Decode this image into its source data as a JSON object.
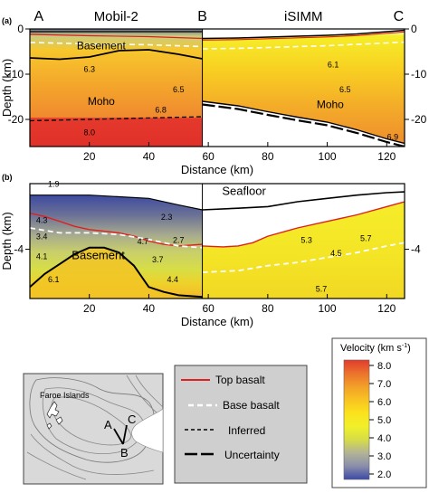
{
  "colors": {
    "top_basalt": "#e02020",
    "base_basalt": "#ffffff",
    "inferred": "#000000",
    "uncertainty": "#000000",
    "legend_bg": "#cfcfcf"
  },
  "chart_data": [
    {
      "type": "heatmap",
      "panel_label": "(a)",
      "profiles": [
        {
          "name": "Mobil-2",
          "x_range": [
            0,
            58
          ]
        },
        {
          "name": "iSIMM",
          "x_range": [
            58,
            126
          ]
        }
      ],
      "points": [
        {
          "label": "A",
          "x": 3
        },
        {
          "label": "B",
          "x": 58
        },
        {
          "label": "C",
          "x": 124
        }
      ],
      "xlabel": "Distance (km)",
      "ylabel": "Depth (km)",
      "xlim": [
        0,
        126
      ],
      "ylim": [
        -26,
        0
      ],
      "xticks": [
        20,
        40,
        60,
        80,
        100,
        120
      ],
      "yticks": [
        0,
        -10,
        -20
      ],
      "ytick_labels_left": [
        "0",
        "-10",
        "-20"
      ],
      "ytick_labels_right": [
        "0",
        "-10",
        "-20"
      ],
      "interfaces": {
        "basement": {
          "label": "Basement",
          "x": [
            0,
            10,
            20,
            30,
            40,
            50,
            58
          ],
          "y": [
            -6.4,
            -6.7,
            -6.2,
            -4.8,
            -4.6,
            -5.6,
            -6.6
          ]
        },
        "moho_mobil": {
          "label": "Moho",
          "x": [
            0,
            58
          ],
          "y": [
            -20.3,
            -19.4
          ]
        },
        "moho_isimm": {
          "label": "Moho",
          "x": [
            58,
            70,
            80,
            90,
            100,
            110,
            120,
            126
          ],
          "y": [
            -16,
            -17,
            -18.3,
            -19.5,
            -20.6,
            -22.3,
            -24.3,
            -25.3
          ]
        },
        "top_seafloor_isimm": {
          "x": [
            58,
            70,
            80,
            90,
            100,
            110,
            120,
            126
          ],
          "y": [
            -2.1,
            -2.0,
            -1.8,
            -1.6,
            -1.4,
            -1.1,
            -0.6,
            -0.3
          ]
        },
        "base_basalt_isimm": {
          "x": [
            58,
            70,
            80,
            90,
            100,
            110,
            120,
            126
          ],
          "y": [
            -4.4,
            -4.3,
            -4.1,
            -3.9,
            -3.7,
            -3.4,
            -3.1,
            -2.9
          ]
        }
      },
      "velocity_labels": [
        {
          "text": "6.3",
          "x": 20,
          "y": -9.5
        },
        {
          "text": "6.5",
          "x": 50,
          "y": -14
        },
        {
          "text": "6.8",
          "x": 44,
          "y": -18.5
        },
        {
          "text": "8.0",
          "x": 20,
          "y": -23.5
        },
        {
          "text": "6.1",
          "x": 102,
          "y": -8.5
        },
        {
          "text": "6.5",
          "x": 106,
          "y": -14
        },
        {
          "text": "6.9",
          "x": 122,
          "y": -24.5
        }
      ]
    },
    {
      "type": "heatmap",
      "panel_label": "(b)",
      "xlabel": "Distance (km)",
      "ylabel": "Depth (km)",
      "xlim": [
        0,
        126
      ],
      "ylim": [
        -7,
        0
      ],
      "xticks": [
        20,
        40,
        60,
        80,
        100,
        120
      ],
      "yticks": [
        -4
      ],
      "ytick_labels_left": [
        "-4"
      ],
      "ytick_labels_right": [
        "-4"
      ],
      "seafloor_label": "Seafloor",
      "interfaces": {
        "seafloor_mobil": {
          "x": [
            0,
            20,
            30,
            40,
            50,
            58
          ],
          "y": [
            -0.7,
            -0.7,
            -0.8,
            -0.9,
            -1.3,
            -1.6
          ]
        },
        "seafloor_isimm": {
          "x": [
            58,
            70,
            80,
            90,
            100,
            110,
            120,
            126
          ],
          "y": [
            -1.6,
            -1.5,
            -1.4,
            -1.1,
            -0.9,
            -0.7,
            -0.55,
            -0.5
          ]
        },
        "top_basalt_mobil": {
          "x": [
            0,
            5,
            10,
            15,
            20,
            25,
            30,
            35,
            40,
            45,
            50,
            58
          ],
          "y": [
            -1.8,
            -2.0,
            -2.3,
            -2.6,
            -2.8,
            -2.9,
            -3.0,
            -3.2,
            -3.5,
            -3.7,
            -3.8,
            -3.7
          ]
        },
        "top_basalt_isimm": {
          "x": [
            58,
            65,
            70,
            75,
            80,
            90,
            100,
            110,
            120,
            126
          ],
          "y": [
            -3.8,
            -3.85,
            -3.8,
            -3.6,
            -3.2,
            -2.7,
            -2.3,
            -1.9,
            -1.4,
            -1.1
          ]
        },
        "base_basalt_mobil": {
          "x": [
            0,
            10,
            20,
            30,
            40,
            50,
            58
          ],
          "y": [
            -2.7,
            -3.0,
            -3.0,
            -3.1,
            -3.4,
            -3.8,
            -3.9
          ]
        },
        "base_basalt_isimm": {
          "x": [
            58,
            70,
            80,
            90,
            100,
            110,
            120,
            126
          ],
          "y": [
            -5.4,
            -5.3,
            -5.0,
            -4.8,
            -4.5,
            -4.2,
            -3.8,
            -3.6
          ]
        },
        "basement": {
          "label": "Basement",
          "x": [
            0,
            5,
            10,
            15,
            20,
            25,
            30,
            35,
            40,
            45,
            50,
            58
          ],
          "y": [
            -6.3,
            -5.5,
            -4.9,
            -4.3,
            -3.9,
            -3.9,
            -4.2,
            -5.0,
            -6.3,
            -6.6,
            -6.8,
            -6.9
          ]
        }
      },
      "velocity_labels": [
        {
          "text": "1.9",
          "x": 8,
          "y": -0.2
        },
        {
          "text": "4.3",
          "x": 4,
          "y": -2.4
        },
        {
          "text": "3.4",
          "x": 4,
          "y": -3.4
        },
        {
          "text": "4.1",
          "x": 4,
          "y": -4.6
        },
        {
          "text": "6.1",
          "x": 8,
          "y": -6.0
        },
        {
          "text": "2.3",
          "x": 46,
          "y": -2.2
        },
        {
          "text": "4.7",
          "x": 38,
          "y": -3.7
        },
        {
          "text": "2.7",
          "x": 50,
          "y": -3.6
        },
        {
          "text": "3.7",
          "x": 43,
          "y": -4.8
        },
        {
          "text": "4.4",
          "x": 48,
          "y": -6.0
        },
        {
          "text": "5.3",
          "x": 93,
          "y": -3.6
        },
        {
          "text": "5.7",
          "x": 113,
          "y": -3.5
        },
        {
          "text": "4.5",
          "x": 103,
          "y": -4.4
        },
        {
          "text": "5.7",
          "x": 98,
          "y": -6.6
        }
      ]
    }
  ],
  "map": {
    "islands_label": "Faroe Islands",
    "points": [
      "A",
      "B",
      "C"
    ]
  },
  "legend": {
    "items": [
      "Top basalt",
      "Base basalt",
      "Inferred",
      "Uncertainty"
    ]
  },
  "colorbar": {
    "title": "Velocity (km s",
    "title_sup": "-1",
    "title_end": ")",
    "range": [
      2.0,
      8.0
    ],
    "ticks": [
      "8.0",
      "7.0",
      "6.0",
      "5.0",
      "4.0",
      "3.0",
      "2.0"
    ],
    "stops": [
      "#3c4aa6",
      "#8a8eab",
      "#b2b396",
      "#d6dc47",
      "#f0f02a",
      "#fbe21c",
      "#f8c322",
      "#f2a028",
      "#eb722d",
      "#e23a2d"
    ]
  }
}
